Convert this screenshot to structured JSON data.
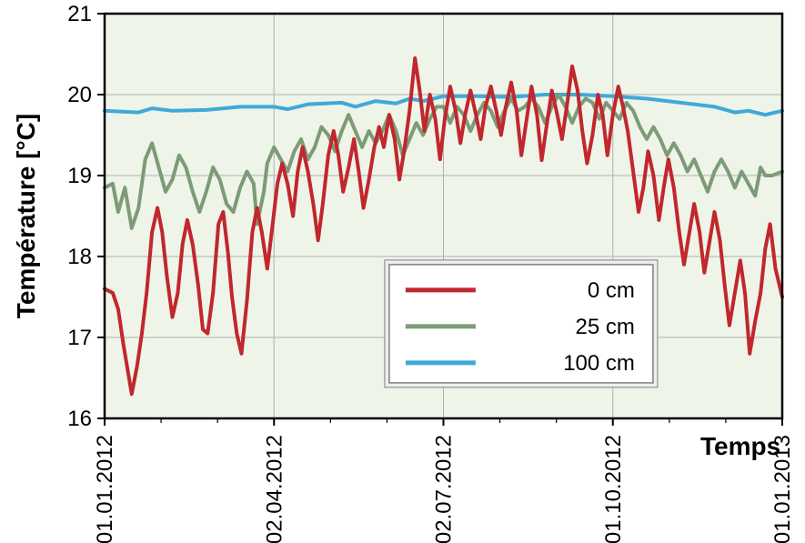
{
  "chart": {
    "type": "line",
    "background_color": "#ffffff",
    "plot_background_color": "#eef4e8",
    "grid_color": "#b0b0b0",
    "border_color": "#000000",
    "tick_fontsize": 24,
    "title_fontsize": 28,
    "ylabel": "Température [°C]",
    "xlabel": "Temps",
    "ylim": [
      16,
      21
    ],
    "ytick_step": 1,
    "xticks": [
      "01.01.2012",
      "02.04.2012",
      "02.07.2012",
      "01.10.2012",
      "01.01.2013"
    ],
    "xticks_pos": [
      0,
      0.25,
      0.5,
      0.75,
      1.0
    ],
    "legend": {
      "items": [
        {
          "label": "0 cm",
          "color": "#c1272d"
        },
        {
          "label": "25 cm",
          "color": "#7d9b76"
        },
        {
          "label": "100 cm",
          "color": "#3fa9d9"
        }
      ]
    },
    "series": [
      {
        "name": "0 cm",
        "color": "#c1272d",
        "line_width": 4,
        "data": [
          [
            0.0,
            17.6
          ],
          [
            0.012,
            17.55
          ],
          [
            0.02,
            17.35
          ],
          [
            0.028,
            16.9
          ],
          [
            0.034,
            16.6
          ],
          [
            0.04,
            16.3
          ],
          [
            0.048,
            16.65
          ],
          [
            0.055,
            17.05
          ],
          [
            0.062,
            17.55
          ],
          [
            0.07,
            18.3
          ],
          [
            0.078,
            18.6
          ],
          [
            0.085,
            18.3
          ],
          [
            0.092,
            17.75
          ],
          [
            0.1,
            17.25
          ],
          [
            0.108,
            17.55
          ],
          [
            0.115,
            18.15
          ],
          [
            0.122,
            18.45
          ],
          [
            0.13,
            18.15
          ],
          [
            0.138,
            17.65
          ],
          [
            0.145,
            17.1
          ],
          [
            0.152,
            17.05
          ],
          [
            0.16,
            17.55
          ],
          [
            0.168,
            18.4
          ],
          [
            0.175,
            18.55
          ],
          [
            0.182,
            18.05
          ],
          [
            0.188,
            17.5
          ],
          [
            0.195,
            17.05
          ],
          [
            0.202,
            16.8
          ],
          [
            0.21,
            17.45
          ],
          [
            0.218,
            18.3
          ],
          [
            0.225,
            18.6
          ],
          [
            0.232,
            18.3
          ],
          [
            0.24,
            17.85
          ],
          [
            0.248,
            18.4
          ],
          [
            0.255,
            18.9
          ],
          [
            0.262,
            19.15
          ],
          [
            0.27,
            18.9
          ],
          [
            0.278,
            18.5
          ],
          [
            0.285,
            19.05
          ],
          [
            0.292,
            19.35
          ],
          [
            0.3,
            19.05
          ],
          [
            0.308,
            18.65
          ],
          [
            0.315,
            18.2
          ],
          [
            0.322,
            18.65
          ],
          [
            0.33,
            19.25
          ],
          [
            0.338,
            19.55
          ],
          [
            0.345,
            19.25
          ],
          [
            0.352,
            18.8
          ],
          [
            0.36,
            19.1
          ],
          [
            0.368,
            19.45
          ],
          [
            0.375,
            19.05
          ],
          [
            0.382,
            18.6
          ],
          [
            0.39,
            18.95
          ],
          [
            0.398,
            19.35
          ],
          [
            0.405,
            19.6
          ],
          [
            0.412,
            19.35
          ],
          [
            0.42,
            19.75
          ],
          [
            0.428,
            19.45
          ],
          [
            0.435,
            18.95
          ],
          [
            0.442,
            19.3
          ],
          [
            0.45,
            19.8
          ],
          [
            0.458,
            20.45
          ],
          [
            0.465,
            20.05
          ],
          [
            0.472,
            19.55
          ],
          [
            0.48,
            20.0
          ],
          [
            0.488,
            19.7
          ],
          [
            0.495,
            19.2
          ],
          [
            0.502,
            19.7
          ],
          [
            0.51,
            20.1
          ],
          [
            0.518,
            19.8
          ],
          [
            0.525,
            19.4
          ],
          [
            0.532,
            19.75
          ],
          [
            0.54,
            20.05
          ],
          [
            0.548,
            19.75
          ],
          [
            0.555,
            19.45
          ],
          [
            0.562,
            19.85
          ],
          [
            0.57,
            20.1
          ],
          [
            0.578,
            19.8
          ],
          [
            0.585,
            19.5
          ],
          [
            0.592,
            19.85
          ],
          [
            0.6,
            20.15
          ],
          [
            0.608,
            19.8
          ],
          [
            0.615,
            19.25
          ],
          [
            0.622,
            19.65
          ],
          [
            0.63,
            20.1
          ],
          [
            0.638,
            19.75
          ],
          [
            0.645,
            19.19
          ],
          [
            0.652,
            19.6
          ],
          [
            0.66,
            20.05
          ],
          [
            0.668,
            19.75
          ],
          [
            0.675,
            19.45
          ],
          [
            0.682,
            19.85
          ],
          [
            0.69,
            20.35
          ],
          [
            0.698,
            20.05
          ],
          [
            0.705,
            19.55
          ],
          [
            0.712,
            19.15
          ],
          [
            0.72,
            19.5
          ],
          [
            0.728,
            20.0
          ],
          [
            0.735,
            19.75
          ],
          [
            0.742,
            19.25
          ],
          [
            0.75,
            19.75
          ],
          [
            0.758,
            20.1
          ],
          [
            0.765,
            19.85
          ],
          [
            0.772,
            19.55
          ],
          [
            0.78,
            19.05
          ],
          [
            0.788,
            18.55
          ],
          [
            0.795,
            18.85
          ],
          [
            0.802,
            19.3
          ],
          [
            0.81,
            19.0
          ],
          [
            0.818,
            18.45
          ],
          [
            0.825,
            18.85
          ],
          [
            0.832,
            19.2
          ],
          [
            0.84,
            18.85
          ],
          [
            0.848,
            18.3
          ],
          [
            0.855,
            17.9
          ],
          [
            0.862,
            18.25
          ],
          [
            0.87,
            18.65
          ],
          [
            0.878,
            18.3
          ],
          [
            0.885,
            17.8
          ],
          [
            0.892,
            18.15
          ],
          [
            0.9,
            18.55
          ],
          [
            0.908,
            18.2
          ],
          [
            0.915,
            17.65
          ],
          [
            0.922,
            17.15
          ],
          [
            0.93,
            17.55
          ],
          [
            0.938,
            17.95
          ],
          [
            0.945,
            17.55
          ],
          [
            0.952,
            16.8
          ],
          [
            0.96,
            17.2
          ],
          [
            0.968,
            17.55
          ],
          [
            0.975,
            18.1
          ],
          [
            0.982,
            18.4
          ],
          [
            0.99,
            17.85
          ],
          [
            1.0,
            17.5
          ]
        ]
      },
      {
        "name": "25 cm",
        "color": "#7d9b76",
        "line_width": 4,
        "data": [
          [
            0.0,
            18.85
          ],
          [
            0.012,
            18.9
          ],
          [
            0.02,
            18.55
          ],
          [
            0.03,
            18.85
          ],
          [
            0.04,
            18.35
          ],
          [
            0.05,
            18.6
          ],
          [
            0.06,
            19.2
          ],
          [
            0.07,
            19.4
          ],
          [
            0.08,
            19.1
          ],
          [
            0.09,
            18.8
          ],
          [
            0.1,
            18.95
          ],
          [
            0.11,
            19.25
          ],
          [
            0.12,
            19.1
          ],
          [
            0.13,
            18.8
          ],
          [
            0.14,
            18.55
          ],
          [
            0.15,
            18.8
          ],
          [
            0.16,
            19.1
          ],
          [
            0.17,
            18.95
          ],
          [
            0.18,
            18.65
          ],
          [
            0.19,
            18.55
          ],
          [
            0.2,
            18.85
          ],
          [
            0.21,
            19.05
          ],
          [
            0.22,
            18.9
          ],
          [
            0.225,
            18.4
          ],
          [
            0.235,
            18.8
          ],
          [
            0.24,
            19.15
          ],
          [
            0.25,
            19.35
          ],
          [
            0.26,
            19.2
          ],
          [
            0.27,
            19.05
          ],
          [
            0.28,
            19.3
          ],
          [
            0.29,
            19.45
          ],
          [
            0.3,
            19.2
          ],
          [
            0.31,
            19.35
          ],
          [
            0.32,
            19.6
          ],
          [
            0.33,
            19.5
          ],
          [
            0.34,
            19.3
          ],
          [
            0.35,
            19.55
          ],
          [
            0.36,
            19.75
          ],
          [
            0.37,
            19.55
          ],
          [
            0.38,
            19.35
          ],
          [
            0.39,
            19.55
          ],
          [
            0.4,
            19.4
          ],
          [
            0.41,
            19.55
          ],
          [
            0.42,
            19.75
          ],
          [
            0.43,
            19.55
          ],
          [
            0.44,
            19.25
          ],
          [
            0.45,
            19.45
          ],
          [
            0.46,
            19.65
          ],
          [
            0.47,
            19.5
          ],
          [
            0.48,
            19.7
          ],
          [
            0.49,
            19.85
          ],
          [
            0.5,
            19.85
          ],
          [
            0.51,
            19.65
          ],
          [
            0.52,
            19.85
          ],
          [
            0.53,
            19.75
          ],
          [
            0.54,
            19.55
          ],
          [
            0.55,
            19.75
          ],
          [
            0.56,
            19.9
          ],
          [
            0.57,
            19.8
          ],
          [
            0.58,
            19.6
          ],
          [
            0.59,
            19.8
          ],
          [
            0.6,
            19.95
          ],
          [
            0.61,
            19.8
          ],
          [
            0.62,
            19.85
          ],
          [
            0.63,
            19.95
          ],
          [
            0.64,
            19.85
          ],
          [
            0.65,
            19.65
          ],
          [
            0.66,
            19.85
          ],
          [
            0.67,
            20.0
          ],
          [
            0.68,
            19.85
          ],
          [
            0.69,
            19.65
          ],
          [
            0.7,
            19.85
          ],
          [
            0.71,
            19.95
          ],
          [
            0.72,
            19.9
          ],
          [
            0.73,
            19.7
          ],
          [
            0.74,
            19.9
          ],
          [
            0.75,
            19.8
          ],
          [
            0.76,
            19.7
          ],
          [
            0.77,
            19.9
          ],
          [
            0.78,
            19.8
          ],
          [
            0.79,
            19.6
          ],
          [
            0.8,
            19.45
          ],
          [
            0.81,
            19.6
          ],
          [
            0.82,
            19.45
          ],
          [
            0.83,
            19.25
          ],
          [
            0.84,
            19.4
          ],
          [
            0.85,
            19.25
          ],
          [
            0.86,
            19.05
          ],
          [
            0.87,
            19.2
          ],
          [
            0.88,
            19.0
          ],
          [
            0.89,
            18.8
          ],
          [
            0.9,
            19.05
          ],
          [
            0.91,
            19.2
          ],
          [
            0.92,
            19.05
          ],
          [
            0.93,
            18.85
          ],
          [
            0.94,
            19.05
          ],
          [
            0.95,
            18.9
          ],
          [
            0.96,
            18.75
          ],
          [
            0.968,
            19.1
          ],
          [
            0.975,
            19.0
          ],
          [
            0.985,
            19.0
          ],
          [
            1.0,
            19.05
          ]
        ]
      },
      {
        "name": "100 cm",
        "color": "#3fa9d9",
        "line_width": 4,
        "data": [
          [
            0.0,
            19.8
          ],
          [
            0.05,
            19.78
          ],
          [
            0.07,
            19.83
          ],
          [
            0.1,
            19.8
          ],
          [
            0.15,
            19.81
          ],
          [
            0.2,
            19.85
          ],
          [
            0.25,
            19.85
          ],
          [
            0.27,
            19.82
          ],
          [
            0.3,
            19.88
          ],
          [
            0.35,
            19.9
          ],
          [
            0.37,
            19.85
          ],
          [
            0.4,
            19.92
          ],
          [
            0.43,
            19.89
          ],
          [
            0.45,
            19.95
          ],
          [
            0.47,
            19.92
          ],
          [
            0.5,
            19.98
          ],
          [
            0.55,
            19.98
          ],
          [
            0.6,
            19.97
          ],
          [
            0.65,
            20.0
          ],
          [
            0.7,
            20.0
          ],
          [
            0.75,
            19.98
          ],
          [
            0.8,
            19.95
          ],
          [
            0.85,
            19.9
          ],
          [
            0.9,
            19.85
          ],
          [
            0.93,
            19.78
          ],
          [
            0.95,
            19.8
          ],
          [
            0.975,
            19.75
          ],
          [
            1.0,
            19.8
          ]
        ]
      }
    ]
  }
}
